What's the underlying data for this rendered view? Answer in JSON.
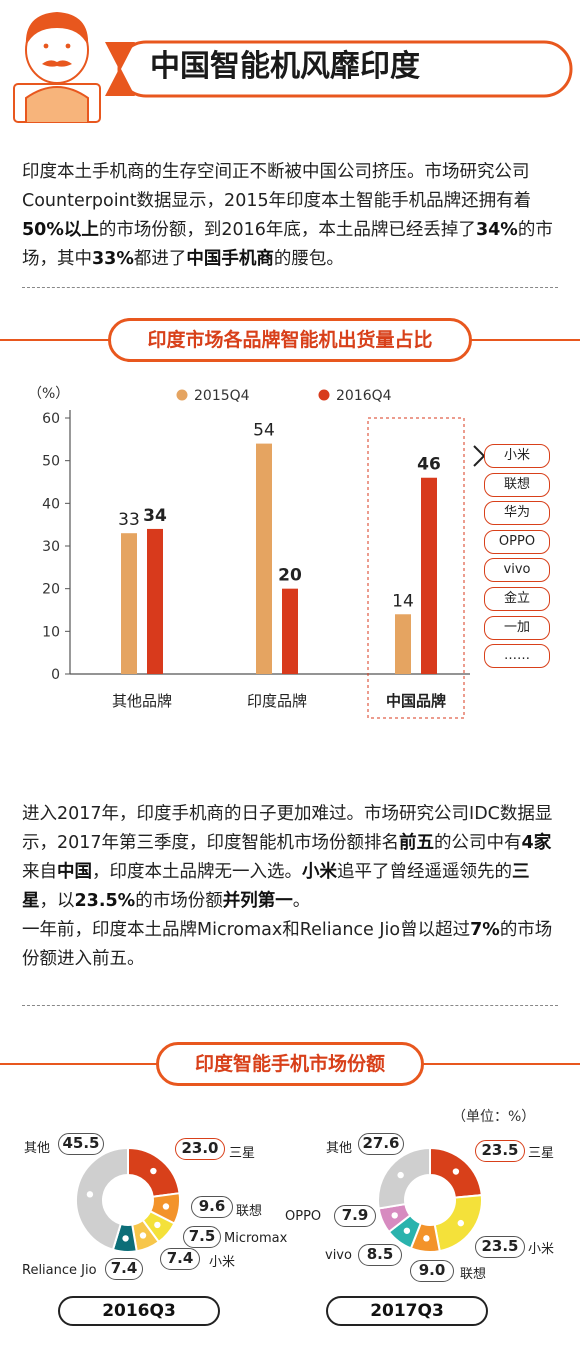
{
  "header": {
    "title": "中国智能机风靡印度"
  },
  "intro": {
    "segments": [
      {
        "t": "印度本土手机商的生存空间正不断被中国公司挤压。市场研究公司Counterpoint数据显示，2015年印度本土智能手机品牌还拥有着",
        "b": false
      },
      {
        "t": "50%以上",
        "b": true
      },
      {
        "t": "的市场份额，到2016年底，本土品牌已经丢掉了",
        "b": false
      },
      {
        "t": "34%",
        "b": true
      },
      {
        "t": "的市场，其中",
        "b": false
      },
      {
        "t": "33%",
        "b": true
      },
      {
        "t": "都进了",
        "b": false
      },
      {
        "t": "中国手机商",
        "b": true
      },
      {
        "t": "的腰包。",
        "b": false
      }
    ]
  },
  "bar_section": {
    "title": "印度市场各品牌智能机出货量占比"
  },
  "mid": {
    "p1": [
      {
        "t": "进入2017年，印度手机商的日子更加难过。市场研究公司IDC数据显示，2017年第三季度，印度智能机市场份额排名",
        "b": false
      },
      {
        "t": "前五",
        "b": true
      },
      {
        "t": "的公司中有",
        "b": false
      },
      {
        "t": "4家",
        "b": true
      },
      {
        "t": "来自",
        "b": false
      },
      {
        "t": "中国",
        "b": true
      },
      {
        "t": "，印度本土品牌无一入选。",
        "b": false
      },
      {
        "t": "小米",
        "b": true
      },
      {
        "t": "追平了曾经遥遥领先的",
        "b": false
      },
      {
        "t": "三星",
        "b": true
      },
      {
        "t": "，以",
        "b": false
      },
      {
        "t": "23.5%",
        "b": true
      },
      {
        "t": "的市场份额",
        "b": false
      },
      {
        "t": "并列第一",
        "b": true
      },
      {
        "t": "。",
        "b": false
      }
    ],
    "p2": [
      {
        "t": "一年前，印度本土品牌Micromax和Reliance Jio曾以超过",
        "b": false
      },
      {
        "t": "7%",
        "b": true
      },
      {
        "t": "的市场份额进入前五。",
        "b": false
      }
    ]
  },
  "pie_section": {
    "title": "印度智能手机市场份额",
    "unit": "（单位：%）"
  },
  "colors": {
    "accent": "#e8571e",
    "c2015": "#e5a461",
    "c2016": "#d83a1c",
    "samsung": "#d8401a",
    "orange": "#f3932a",
    "yellow": "#f4e13a",
    "teal": "#0c6e78",
    "gray": "#cfcfcf",
    "pink": "#d78bc0",
    "cyan": "#2ab3ad"
  },
  "brands_list": [
    "小米",
    "联想",
    "华为",
    "OPPO",
    "vivo",
    "金立",
    "一加",
    "……"
  ],
  "chart_data": [
    {
      "type": "bar",
      "ylabel": "（%）",
      "ylim": [
        0,
        60
      ],
      "yticks": [
        "0",
        "10",
        "20",
        "30",
        "40",
        "50",
        "60"
      ],
      "categories": [
        "其他品牌",
        "印度品牌",
        "中国品牌"
      ],
      "highlight_category": "中国品牌",
      "legend_position": "top",
      "grid": false,
      "series": [
        {
          "name": "2015Q4",
          "values": [
            33,
            54,
            14
          ],
          "color": "#e5a461"
        },
        {
          "name": "2016Q4",
          "values": [
            34,
            20,
            46
          ],
          "color": "#d83a1c"
        }
      ]
    },
    {
      "type": "pie",
      "style": "donut",
      "caption": "2016Q3",
      "slices": [
        {
          "label": "三星",
          "value": 23.0,
          "display": "23.0",
          "color": "#d8401a"
        },
        {
          "label": "联想",
          "value": 9.6,
          "display": "9.6",
          "color": "#f3932a"
        },
        {
          "label": "Micromax",
          "value": 7.5,
          "display": "7.5",
          "color": "#f4e13a"
        },
        {
          "label": "小米",
          "value": 7.4,
          "display": "7.4",
          "color": "#f7c64a"
        },
        {
          "label": "Reliance Jio",
          "value": 7.4,
          "display": "7.4",
          "color": "#0c6e78"
        },
        {
          "label": "其他",
          "value": 45.5,
          "display": "45.5",
          "color": "#cfcfcf"
        }
      ]
    },
    {
      "type": "pie",
      "style": "donut",
      "caption": "2017Q3",
      "slices": [
        {
          "label": "三星",
          "value": 23.5,
          "display": "23.5",
          "color": "#d8401a"
        },
        {
          "label": "小米",
          "value": 23.5,
          "display": "23.5",
          "color": "#f4e13a"
        },
        {
          "label": "联想",
          "value": 9.0,
          "display": "9.0",
          "color": "#f3932a"
        },
        {
          "label": "vivo",
          "value": 8.5,
          "display": "8.5",
          "color": "#2ab3ad"
        },
        {
          "label": "OPPO",
          "value": 7.9,
          "display": "7.9",
          "color": "#d78bc0"
        },
        {
          "label": "其他",
          "value": 27.6,
          "display": "27.6",
          "color": "#cfcfcf"
        }
      ]
    }
  ]
}
